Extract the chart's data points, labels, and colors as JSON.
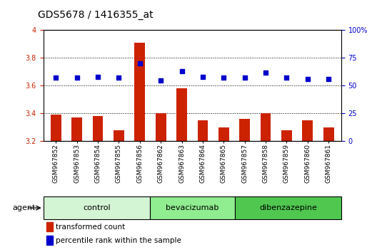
{
  "title": "GDS5678 / 1416355_at",
  "samples": [
    "GSM967852",
    "GSM967853",
    "GSM967854",
    "GSM967855",
    "GSM967856",
    "GSM967862",
    "GSM967863",
    "GSM967864",
    "GSM967865",
    "GSM967857",
    "GSM967858",
    "GSM967859",
    "GSM967860",
    "GSM967861"
  ],
  "transformed_count": [
    3.39,
    3.37,
    3.38,
    3.28,
    3.91,
    3.4,
    3.58,
    3.35,
    3.3,
    3.36,
    3.4,
    3.28,
    3.35,
    3.3
  ],
  "percentile_rank": [
    57,
    57,
    58,
    57,
    70,
    55,
    63,
    58,
    57,
    57,
    62,
    57,
    56,
    56
  ],
  "groups": [
    {
      "name": "control",
      "count": 5,
      "color": "#d4f5d4"
    },
    {
      "name": "bevacizumab",
      "count": 4,
      "color": "#90ee90"
    },
    {
      "name": "dibenzazepine",
      "count": 5,
      "color": "#50c850"
    }
  ],
  "ylim_left": [
    3.2,
    4.0
  ],
  "ylim_right": [
    0,
    100
  ],
  "yticks_left": [
    3.2,
    3.4,
    3.6,
    3.8,
    4.0
  ],
  "ytick_labels_left": [
    "3.2",
    "3.4",
    "3.6",
    "3.8",
    "4"
  ],
  "yticks_right": [
    0,
    25,
    50,
    75,
    100
  ],
  "ytick_labels_right": [
    "0",
    "25",
    "50",
    "75",
    "100%"
  ],
  "bar_color": "#cc2200",
  "dot_color": "#0000cc",
  "bar_width": 0.5,
  "bar_bottom": 3.2,
  "agent_label": "agent",
  "legend_bar": "transformed count",
  "legend_dot": "percentile rank within the sample",
  "title_fontsize": 10,
  "tick_fontsize": 7,
  "xtick_fontsize": 6.5,
  "axis_label_color_left": "#cc2200",
  "axis_label_color_right": "#0000cc",
  "grid_color": "#000000"
}
